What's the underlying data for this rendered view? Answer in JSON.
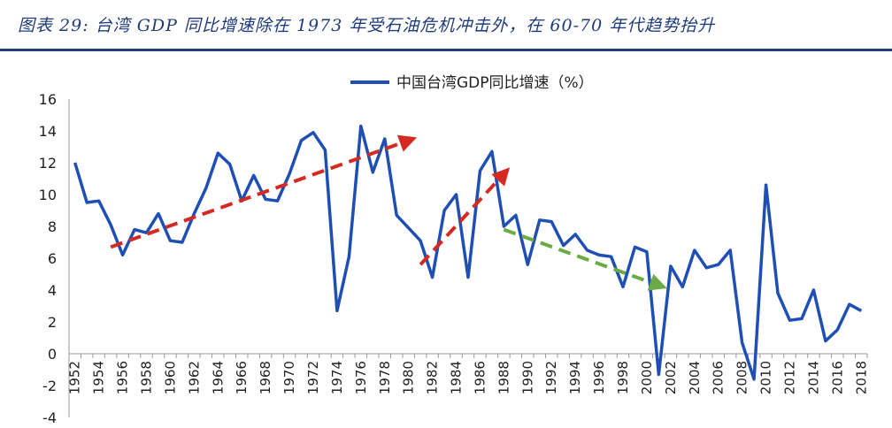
{
  "header": {
    "title": "图表 29: 台湾 GDP 同比增速除在 1973 年受石油危机冲击外，在 60-70 年代趋势抬升"
  },
  "chart_data": {
    "type": "line",
    "title": "",
    "xlabel": "",
    "ylabel": "",
    "ylim": [
      -4,
      16
    ],
    "y_ticks": [
      -4,
      -2,
      0,
      2,
      4,
      6,
      8,
      10,
      12,
      14,
      16
    ],
    "x_tick_labels": [
      "1952",
      "1954",
      "1956",
      "1958",
      "1960",
      "1962",
      "1964",
      "1966",
      "1968",
      "1970",
      "1972",
      "1974",
      "1976",
      "1978",
      "1980",
      "1982",
      "1984",
      "1986",
      "1988",
      "1990",
      "1992",
      "1994",
      "1996",
      "1998",
      "2000",
      "2002",
      "2004",
      "2006",
      "2008",
      "2010",
      "2012",
      "2014",
      "2016",
      "2018"
    ],
    "legend": {
      "position": "top-center"
    },
    "series": [
      {
        "name": "中国台湾GDP同比增速（%）",
        "color": "#1f4fb4",
        "x": [
          1952,
          1953,
          1954,
          1955,
          1956,
          1957,
          1958,
          1959,
          1960,
          1961,
          1962,
          1963,
          1964,
          1965,
          1966,
          1967,
          1968,
          1969,
          1970,
          1971,
          1972,
          1973,
          1974,
          1975,
          1976,
          1977,
          1978,
          1979,
          1980,
          1981,
          1982,
          1983,
          1984,
          1985,
          1986,
          1987,
          1988,
          1989,
          1990,
          1991,
          1992,
          1993,
          1994,
          1995,
          1996,
          1997,
          1998,
          1999,
          2000,
          2001,
          2002,
          2003,
          2004,
          2005,
          2006,
          2007,
          2008,
          2009,
          2010,
          2011,
          2012,
          2013,
          2014,
          2015,
          2016,
          2017,
          2018
        ],
        "values": [
          12.0,
          9.5,
          9.6,
          8.1,
          6.2,
          7.8,
          7.6,
          8.8,
          7.1,
          7.0,
          8.8,
          10.4,
          12.6,
          11.9,
          9.6,
          11.2,
          9.7,
          9.6,
          11.3,
          13.4,
          13.9,
          12.8,
          2.7,
          6.1,
          14.3,
          11.4,
          13.5,
          8.7,
          7.9,
          7.1,
          4.8,
          9.0,
          10.0,
          4.8,
          11.5,
          12.7,
          8.0,
          8.7,
          5.6,
          8.4,
          8.3,
          6.8,
          7.5,
          6.5,
          6.2,
          6.1,
          4.2,
          6.7,
          6.4,
          -1.3,
          5.5,
          4.2,
          6.5,
          5.4,
          5.6,
          6.5,
          0.7,
          -1.6,
          10.6,
          3.8,
          2.1,
          2.2,
          4.0,
          0.8,
          1.5,
          3.1,
          2.7
        ]
      }
    ],
    "annotations": [
      {
        "type": "trend-arrow",
        "color": "#d42a22",
        "from": [
          1955,
          6.7
        ],
        "to": [
          1980,
          13.4
        ]
      },
      {
        "type": "trend-arrow",
        "color": "#d42a22",
        "from": [
          1981,
          5.6
        ],
        "to": [
          1988,
          11.3
        ]
      },
      {
        "type": "trend-arrow",
        "color": "#6aab45",
        "from": [
          1988,
          7.8
        ],
        "to": [
          2001,
          4.3
        ]
      }
    ]
  }
}
